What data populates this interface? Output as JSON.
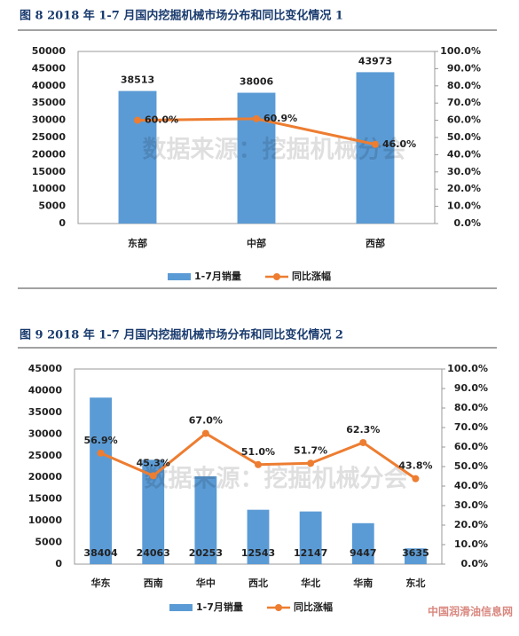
{
  "chart_data": [
    {
      "type": "bar-line",
      "title": "图 8   2018 年 1-7 月国内挖掘机械市场分布和同比变化情况 1",
      "annotation": "数据来源：挖掘机械分会",
      "categories": [
        "东部",
        "中部",
        "西部"
      ],
      "series": [
        {
          "name": "1-7月销量",
          "color": "#5b9bd5",
          "values": [
            38513,
            38006,
            43973
          ]
        },
        {
          "name": "同比涨幅",
          "color": "#ed7d31",
          "axis": "y2",
          "values": [
            60.0,
            60.9,
            46.0
          ],
          "value_labels": [
            "60.0%",
            "60.9%",
            "46.0%"
          ]
        }
      ],
      "ylim": [
        0,
        50000
      ],
      "yticks": [
        0,
        5000,
        10000,
        15000,
        20000,
        25000,
        30000,
        35000,
        40000,
        45000,
        50000
      ],
      "y2lim": [
        0,
        100
      ],
      "y2ticks": [
        {
          "value": 0,
          "label": "0.0%"
        },
        {
          "value": 10,
          "label": "10.0%"
        },
        {
          "value": 20,
          "label": "20.0%"
        },
        {
          "value": 30,
          "label": "30.0%"
        },
        {
          "value": 40,
          "label": "40.0%"
        },
        {
          "value": 50,
          "label": "50.0%"
        },
        {
          "value": 60,
          "label": "60.0%"
        },
        {
          "value": 70,
          "label": "70.0%"
        },
        {
          "value": 80,
          "label": "80.0%"
        },
        {
          "value": 90,
          "label": "90.0%"
        },
        {
          "value": 100,
          "label": "100.0%"
        }
      ]
    },
    {
      "type": "bar-line",
      "title": "图 9   2018 年 1-7 月国内挖掘机械市场分布和同比变化情况 2",
      "annotation": "数据来源：挖掘机械分会",
      "categories": [
        "华东",
        "西南",
        "华中",
        "西北",
        "华北",
        "华南",
        "东北"
      ],
      "series": [
        {
          "name": "1-7月销量",
          "color": "#5b9bd5",
          "values": [
            38404,
            24063,
            20253,
            12543,
            12147,
            9447,
            3635
          ]
        },
        {
          "name": "同比涨幅",
          "color": "#ed7d31",
          "axis": "y2",
          "values": [
            56.9,
            45.3,
            67.0,
            51.0,
            51.7,
            62.3,
            43.8
          ],
          "value_labels": [
            "56.9%",
            "45.3%",
            "67.0%",
            "51.0%",
            "51.7%",
            "62.3%",
            "43.8%"
          ]
        }
      ],
      "ylim": [
        0,
        45000
      ],
      "yticks": [
        0,
        5000,
        10000,
        15000,
        20000,
        25000,
        30000,
        35000,
        40000,
        45000
      ],
      "y2lim": [
        0,
        100
      ],
      "y2ticks": [
        {
          "value": 0,
          "label": "0.0%"
        },
        {
          "value": 10,
          "label": "10.0%"
        },
        {
          "value": 20,
          "label": "20.0%"
        },
        {
          "value": 30,
          "label": "30.0%"
        },
        {
          "value": 40,
          "label": "40.0%"
        },
        {
          "value": 50,
          "label": "50.0%"
        },
        {
          "value": 60,
          "label": "60.0%"
        },
        {
          "value": 70,
          "label": "70.0%"
        },
        {
          "value": 80,
          "label": "80.0%"
        },
        {
          "value": 90,
          "label": "90.0%"
        },
        {
          "value": 100,
          "label": "100.0%"
        }
      ]
    }
  ],
  "logo": "中国润滑油信息网"
}
